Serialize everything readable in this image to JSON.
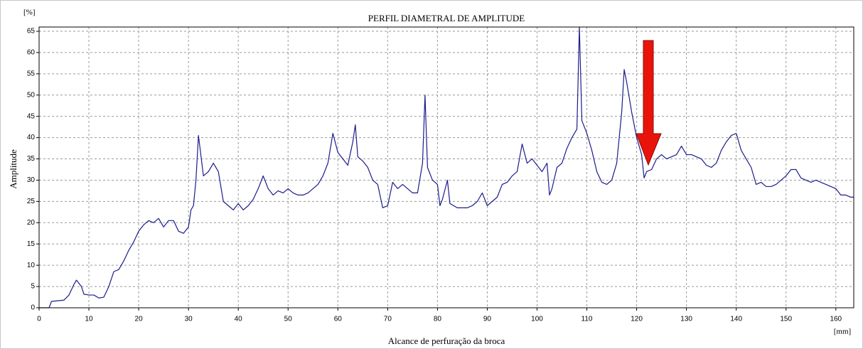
{
  "chart_data": {
    "type": "line",
    "title": "PERFIL DIAMETRAL DE AMPLITUDE",
    "y_unit": "[%]",
    "y_label": "Amplitude",
    "x_label": "Alcance de perfuração da broca",
    "x_unit": "[mm]",
    "xlim": [
      0,
      163.6
    ],
    "ylim": [
      0,
      66
    ],
    "xticks": [
      0,
      10,
      20,
      30,
      40,
      50,
      60,
      70,
      80,
      90,
      100,
      110,
      120,
      130,
      140,
      150,
      160
    ],
    "yticks": [
      0,
      5,
      10,
      15,
      20,
      25,
      30,
      35,
      40,
      45,
      50,
      55,
      60,
      65
    ],
    "grid": true,
    "series": [
      {
        "color": "#1c1c8a",
        "x": [
          0,
          2,
          2.5,
          5,
          6,
          7,
          7.5,
          8.5,
          9,
          10,
          11,
          12,
          13,
          14,
          15,
          16,
          17,
          18,
          19,
          20,
          21,
          22,
          23,
          24,
          25,
          26,
          27,
          28,
          29,
          30,
          30.5,
          31,
          31.5,
          32,
          33,
          34,
          35,
          36,
          37,
          38,
          39,
          40,
          41,
          42,
          43,
          44,
          45,
          46,
          47,
          48,
          49,
          50,
          51,
          52,
          53,
          54,
          55,
          56,
          57,
          58,
          59,
          60,
          61,
          62,
          63,
          63.5,
          64,
          65,
          66,
          67,
          68,
          69,
          70,
          71,
          72,
          73,
          74,
          75,
          76,
          77,
          77.5,
          78,
          79,
          80,
          80.5,
          81,
          82,
          82.5,
          84,
          86,
          87,
          88,
          89,
          90,
          91,
          92,
          93,
          94,
          95,
          96,
          97,
          98,
          99,
          100,
          101,
          102,
          102.5,
          103,
          104,
          105,
          106,
          107,
          108,
          108.5,
          109,
          110,
          111,
          112,
          113,
          114,
          115,
          116,
          117,
          117.5,
          118,
          119,
          120,
          121,
          121.5,
          122,
          123,
          124,
          125,
          126,
          127,
          128,
          129,
          130,
          131,
          132,
          133,
          134,
          135,
          136,
          137,
          138,
          139,
          140,
          141,
          142,
          143,
          144,
          145,
          146,
          147,
          148,
          149,
          150,
          151,
          152,
          153,
          154,
          155,
          156,
          157,
          158,
          159,
          160,
          161,
          162,
          163,
          163.6
        ],
        "values": [
          0,
          0,
          1.5,
          1.8,
          3,
          5.5,
          6.5,
          5,
          3.2,
          3,
          3,
          2.3,
          2.5,
          5,
          8.5,
          9,
          11,
          13.5,
          15.5,
          18,
          19.5,
          20.5,
          20,
          21,
          19,
          20.5,
          20.5,
          18,
          17.5,
          19,
          23,
          24,
          30,
          40.5,
          31,
          32,
          34,
          32,
          25,
          24,
          23,
          24.5,
          23,
          24,
          25.5,
          28,
          31,
          28,
          26.5,
          27.5,
          27,
          28,
          27,
          26.5,
          26.5,
          27,
          28,
          29,
          31,
          34,
          41,
          36.5,
          35,
          33.5,
          39,
          43,
          35.5,
          34.5,
          33,
          30,
          29,
          23.5,
          24,
          29.5,
          28,
          29,
          28,
          27,
          27,
          34,
          50,
          33,
          30,
          29,
          24,
          25.5,
          30,
          24.5,
          23.5,
          23.5,
          24,
          25,
          27,
          24,
          25,
          26,
          29,
          29.5,
          31,
          32,
          38.5,
          34,
          35,
          33.5,
          32,
          34,
          26.5,
          28,
          33,
          34,
          37.5,
          40,
          42,
          66,
          44,
          41,
          37,
          32,
          29.5,
          29,
          30,
          34,
          46,
          56,
          53,
          46,
          40,
          36,
          30.5,
          32,
          32.5,
          35,
          36,
          35,
          35.5,
          36,
          38,
          36,
          36,
          35.5,
          35,
          33.5,
          33,
          34,
          37,
          39,
          40.5,
          41,
          37,
          35,
          33,
          29,
          29.5,
          28.5,
          28.5,
          29,
          30,
          31,
          32.5,
          32.5,
          30.5,
          30,
          29.5,
          30,
          29.5,
          29,
          28.5,
          28,
          26.5,
          26.5,
          26,
          26
        ]
      }
    ]
  }
}
